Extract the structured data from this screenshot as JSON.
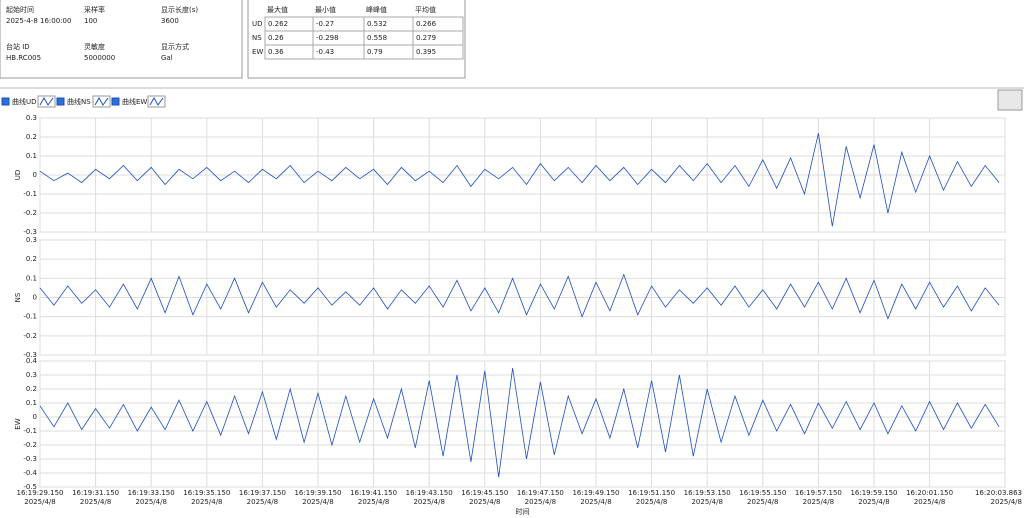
{
  "info": {
    "fields": [
      {
        "label": "起始时间",
        "value": "2025-4-8 16:00:00"
      },
      {
        "label": "采样率",
        "value": "100"
      },
      {
        "label": "显示长度(s)",
        "value": "3600"
      },
      {
        "label": "台站 ID",
        "value": "HB.RC005"
      },
      {
        "label": "灵敏度",
        "value": "5000000"
      },
      {
        "label": "显示方式",
        "value": "Gal"
      }
    ]
  },
  "stats": {
    "headers": [
      "最大值",
      "最小值",
      "峰峰值",
      "平均值"
    ],
    "rows": [
      {
        "name": "UD",
        "cells": [
          0.262,
          -0.27,
          0.532,
          0.266
        ]
      },
      {
        "name": "NS",
        "cells": [
          0.26,
          -0.298,
          0.558,
          0.279
        ]
      },
      {
        "name": "EW",
        "cells": [
          0.36,
          -0.43,
          0.79,
          0.395
        ]
      }
    ]
  },
  "chart_data": {
    "type": "line",
    "xlabel": "时间",
    "xlim": [
      "16:19:29.150",
      "16:20:03.863"
    ],
    "xticks": [
      {
        "value": "16:19:29.150",
        "label": "16:19:29.150",
        "date": "2025/4/8"
      },
      {
        "value": "16:19:31.150",
        "label": "16:19:31.150",
        "date": "2025/4/8"
      },
      {
        "value": "16:19:33.150",
        "label": "16:19:33.150",
        "date": "2025/4/8"
      },
      {
        "value": "16:19:35.150",
        "label": "16:19:35.150",
        "date": "2025/4/8"
      },
      {
        "value": "16:19:37.150",
        "label": "16:19:37.150",
        "date": "2025/4/8"
      },
      {
        "value": "16:19:39.150",
        "label": "16:19:39.150",
        "date": "2025/4/8"
      },
      {
        "value": "16:19:41.150",
        "label": "16:19:41.150",
        "date": "2025/4/8"
      },
      {
        "value": "16:19:43.150",
        "label": "16:19:43.150",
        "date": "2025/4/8"
      },
      {
        "value": "16:19:45.150",
        "label": "16:19:45.150",
        "date": "2025/4/8"
      },
      {
        "value": "16:19:47.150",
        "label": "16:19:47.150",
        "date": "2025/4/8"
      },
      {
        "value": "16:19:49.150",
        "label": "16:19:49.150",
        "date": "2025/4/8"
      },
      {
        "value": "16:19:51.150",
        "label": "16:19:51.150",
        "date": "2025/4/8"
      },
      {
        "value": "16:19:53.150",
        "label": "16:19:53.150",
        "date": "2025/4/8"
      },
      {
        "value": "16:19:55.150",
        "label": "16:19:55.150",
        "date": "2025/4/8"
      },
      {
        "value": "16:19:57.150",
        "label": "16:19:57.150",
        "date": "2025/4/8"
      },
      {
        "value": "16:19:59.150",
        "label": "16:19:59.150",
        "date": "2025/4/8"
      },
      {
        "value": "16:20:01.150",
        "label": "16:20:01.150",
        "date": "2025/4/8"
      },
      {
        "value": "16:20:03.863",
        "label": "16:20:03.863",
        "date": "2025/4/8"
      }
    ],
    "grid": true,
    "x": [
      "16:19:29.150",
      "16:19:29.650",
      "16:19:30.150",
      "16:19:30.650",
      "16:19:31.150",
      "16:19:31.650",
      "16:19:32.150",
      "16:19:32.650",
      "16:19:33.150",
      "16:19:33.650",
      "16:19:34.150",
      "16:19:34.650",
      "16:19:35.150",
      "16:19:35.650",
      "16:19:36.150",
      "16:19:36.650",
      "16:19:37.150",
      "16:19:37.650",
      "16:19:38.150",
      "16:19:38.650",
      "16:19:39.150",
      "16:19:39.650",
      "16:19:40.150",
      "16:19:40.650",
      "16:19:41.150",
      "16:19:41.650",
      "16:19:42.150",
      "16:19:42.650",
      "16:19:43.150",
      "16:19:43.650",
      "16:19:44.150",
      "16:19:44.650",
      "16:19:45.150",
      "16:19:45.650",
      "16:19:46.150",
      "16:19:46.650",
      "16:19:47.150",
      "16:19:47.650",
      "16:19:48.150",
      "16:19:48.650",
      "16:19:49.150",
      "16:19:49.650",
      "16:19:50.150",
      "16:19:50.650",
      "16:19:51.150",
      "16:19:51.650",
      "16:19:52.150",
      "16:19:52.650",
      "16:19:53.150",
      "16:19:53.650",
      "16:19:54.150",
      "16:19:54.650",
      "16:19:55.150",
      "16:19:55.650",
      "16:19:56.150",
      "16:19:56.650",
      "16:19:57.150",
      "16:19:57.650",
      "16:19:58.150",
      "16:19:58.650",
      "16:19:59.150",
      "16:19:59.650",
      "16:20:00.150",
      "16:20:00.650",
      "16:20:01.150",
      "16:20:01.650",
      "16:20:02.150",
      "16:20:02.650",
      "16:20:03.150",
      "16:20:03.650"
    ],
    "panels": [
      {
        "ylabel": "UD",
        "ylim": [
          -0.3,
          0.3
        ],
        "yticks": [
          -0.3,
          -0.2,
          -0.1,
          0,
          0.1,
          0.2,
          0.3
        ],
        "series": [
          {
            "name": "曲线UD",
            "color": "#1c4fc2",
            "values": [
              0.02,
              -0.03,
              0.01,
              -0.04,
              0.03,
              -0.02,
              0.05,
              -0.03,
              0.04,
              -0.05,
              0.03,
              -0.02,
              0.04,
              -0.03,
              0.02,
              -0.04,
              0.03,
              -0.02,
              0.05,
              -0.04,
              0.02,
              -0.03,
              0.04,
              -0.02,
              0.03,
              -0.05,
              0.04,
              -0.03,
              0.02,
              -0.04,
              0.05,
              -0.06,
              0.03,
              -0.02,
              0.04,
              -0.05,
              0.06,
              -0.03,
              0.04,
              -0.04,
              0.05,
              -0.03,
              0.04,
              -0.05,
              0.03,
              -0.04,
              0.05,
              -0.03,
              0.06,
              -0.04,
              0.05,
              -0.06,
              0.08,
              -0.07,
              0.09,
              -0.1,
              0.22,
              -0.27,
              0.15,
              -0.12,
              0.16,
              -0.2,
              0.12,
              -0.09,
              0.1,
              -0.08,
              0.07,
              -0.06,
              0.05,
              -0.04
            ]
          }
        ]
      },
      {
        "ylabel": "NS",
        "ylim": [
          -0.3,
          0.3
        ],
        "yticks": [
          -0.3,
          -0.2,
          -0.1,
          0,
          0.1,
          0.2,
          0.3
        ],
        "series": [
          {
            "name": "曲线NS",
            "color": "#1c4fc2",
            "values": [
              0.05,
              -0.04,
              0.06,
              -0.03,
              0.04,
              -0.05,
              0.07,
              -0.06,
              0.1,
              -0.08,
              0.11,
              -0.09,
              0.07,
              -0.06,
              0.1,
              -0.08,
              0.08,
              -0.05,
              0.04,
              -0.03,
              0.05,
              -0.04,
              0.03,
              -0.04,
              0.05,
              -0.06,
              0.04,
              -0.03,
              0.06,
              -0.05,
              0.09,
              -0.07,
              0.05,
              -0.08,
              0.1,
              -0.09,
              0.07,
              -0.06,
              0.11,
              -0.1,
              0.08,
              -0.07,
              0.12,
              -0.09,
              0.06,
              -0.05,
              0.04,
              -0.03,
              0.05,
              -0.04,
              0.06,
              -0.05,
              0.04,
              -0.06,
              0.07,
              -0.05,
              0.08,
              -0.06,
              0.1,
              -0.08,
              0.09,
              -0.11,
              0.07,
              -0.06,
              0.08,
              -0.05,
              0.06,
              -0.07,
              0.05,
              -0.04
            ]
          }
        ]
      },
      {
        "ylabel": "EW",
        "ylim": [
          -0.5,
          0.4
        ],
        "yticks": [
          -0.5,
          -0.4,
          -0.3,
          -0.2,
          -0.1,
          0,
          0.1,
          0.2,
          0.3,
          0.4
        ],
        "series": [
          {
            "name": "曲线EW",
            "color": "#1c4fc2",
            "values": [
              0.08,
              -0.07,
              0.1,
              -0.09,
              0.06,
              -0.08,
              0.09,
              -0.1,
              0.07,
              -0.09,
              0.12,
              -0.1,
              0.11,
              -0.13,
              0.15,
              -0.12,
              0.18,
              -0.16,
              0.2,
              -0.18,
              0.17,
              -0.2,
              0.15,
              -0.18,
              0.13,
              -0.15,
              0.2,
              -0.22,
              0.26,
              -0.28,
              0.3,
              -0.32,
              0.33,
              -0.43,
              0.35,
              -0.3,
              0.25,
              -0.27,
              0.15,
              -0.12,
              0.13,
              -0.15,
              0.2,
              -0.22,
              0.26,
              -0.25,
              0.3,
              -0.28,
              0.2,
              -0.18,
              0.15,
              -0.13,
              0.12,
              -0.1,
              0.09,
              -0.12,
              0.1,
              -0.08,
              0.11,
              -0.09,
              0.1,
              -0.12,
              0.08,
              -0.1,
              0.11,
              -0.09,
              0.1,
              -0.08,
              0.09,
              -0.07
            ]
          }
        ]
      }
    ]
  }
}
